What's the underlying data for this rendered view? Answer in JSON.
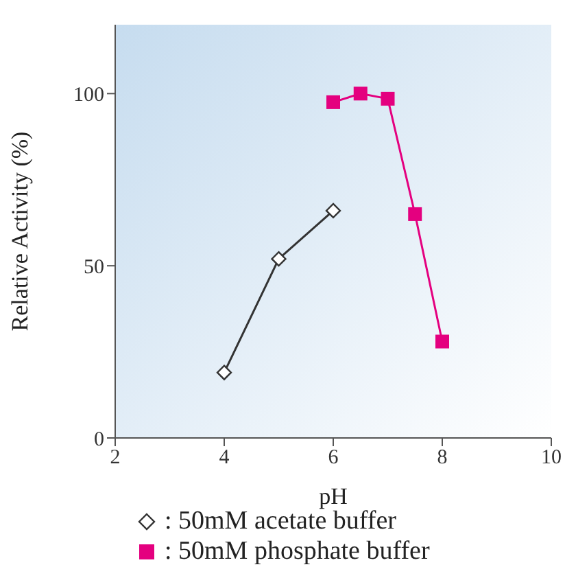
{
  "chart_data": {
    "type": "line",
    "xlabel": "pH",
    "ylabel": "Relative Activity (%)",
    "xlim": [
      2,
      10
    ],
    "xticks": [
      2,
      4,
      6,
      8,
      10
    ],
    "ylim": [
      0,
      120
    ],
    "yticks": [
      0,
      50,
      100
    ],
    "grid": false,
    "legend": "bottom",
    "series": [
      {
        "name": ": 50mM acetate buffer",
        "color": "#333333",
        "marker": "diamond",
        "x": [
          4,
          5,
          6
        ],
        "values": [
          19,
          52,
          66
        ]
      },
      {
        "name": ": 50mM phosphate buffer",
        "color": "#e4007f",
        "marker": "square",
        "x": [
          6,
          6.5,
          7,
          7.5,
          8
        ],
        "values": [
          97.5,
          100,
          98.5,
          65,
          28
        ]
      }
    ]
  }
}
